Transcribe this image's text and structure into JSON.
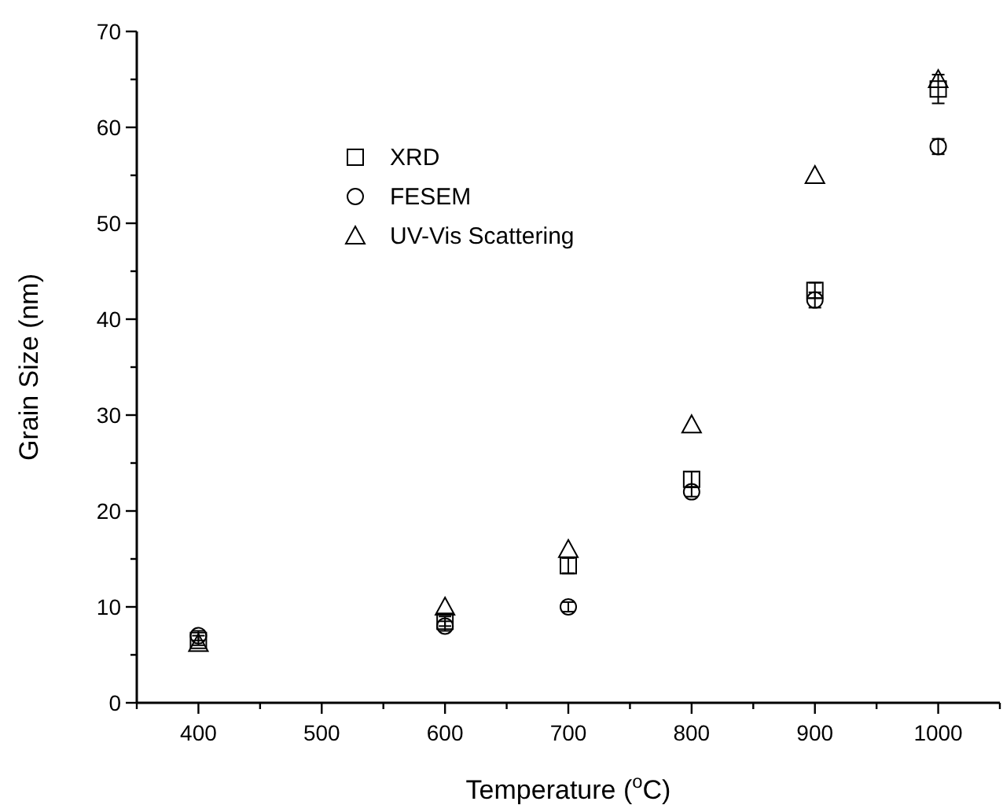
{
  "chart_data": {
    "type": "scatter",
    "xlabel": "Temperature ($^{o}$C)",
    "ylabel": "Grain Size (nm)",
    "xlim": [
      350,
      1050
    ],
    "xticks": [
      {
        "value": 350,
        "label": null
      },
      400,
      {
        "value": 450,
        "label": null
      },
      500,
      {
        "value": 550,
        "label": null
      },
      600,
      {
        "value": 650,
        "label": null
      },
      700,
      {
        "value": 750,
        "label": null
      },
      800,
      {
        "value": 850,
        "label": null
      },
      900,
      {
        "value": 950,
        "label": null
      },
      1000,
      {
        "value": 1050,
        "label": null
      }
    ],
    "ylim": [
      0,
      70
    ],
    "yticks": [
      0,
      {
        "value": 5,
        "label": null
      },
      10,
      {
        "value": 15,
        "label": null
      },
      20,
      {
        "value": 25,
        "label": null
      },
      30,
      {
        "value": 35,
        "label": null
      },
      40,
      {
        "value": 45,
        "label": null
      },
      50,
      {
        "value": 55,
        "label": null
      },
      60,
      {
        "value": 65,
        "label": null
      },
      70
    ],
    "x": [
      400,
      600,
      700,
      800,
      900,
      1000
    ],
    "grid": false,
    "legend": "top left",
    "series": [
      {
        "name": "XRD",
        "color": "#000000",
        "marker": "square",
        "values": [
          6.5,
          8.5,
          14.3,
          23.3,
          43,
          64
        ],
        "errors": [
          0.5,
          0.5,
          0.8,
          0.8,
          0.8,
          1.5
        ]
      },
      {
        "name": "FESEM",
        "color": "#000000",
        "marker": "circle",
        "values": [
          7,
          8,
          10,
          22,
          42,
          58
        ],
        "errors": [
          0.5,
          0.5,
          0.5,
          0.5,
          0.8,
          0.8
        ]
      },
      {
        "name": "UV-Vis Scattering",
        "color": "#000000",
        "marker": "triangle",
        "values": [
          6.2,
          10,
          16,
          29,
          55,
          65
        ]
      }
    ]
  }
}
